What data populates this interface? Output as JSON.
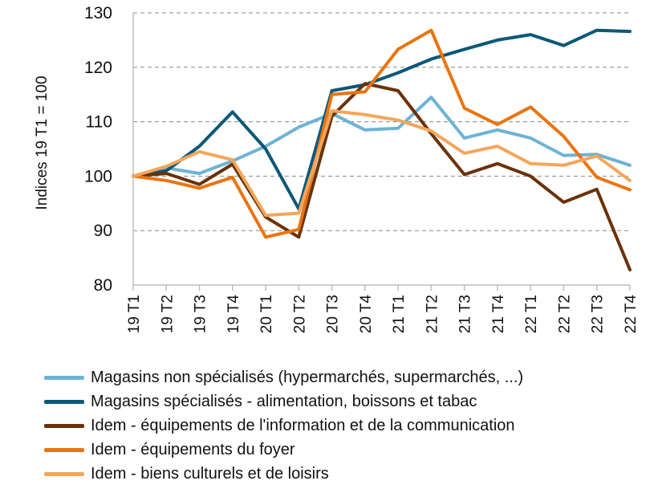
{
  "chart_data": {
    "type": "line",
    "title": "",
    "xlabel": "",
    "ylabel": "Indices 19 T1 = 100",
    "ylim": [
      80,
      130
    ],
    "yticks": [
      80,
      90,
      100,
      110,
      120,
      130
    ],
    "grid": true,
    "legend_position": "bottom",
    "categories": [
      "19 T1",
      "19 T2",
      "19 T3",
      "19 T4",
      "20 T1",
      "20 T2",
      "20 T3",
      "20 T4",
      "21 T1",
      "21 T2",
      "21 T3",
      "21 T4",
      "22 T1",
      "22 T2",
      "22 T3",
      "22 T4"
    ],
    "series": [
      {
        "name": "Magasins non spécialisés (hypermarchés, supermarchés, ...)",
        "color": "#6db3d4",
        "values": [
          100,
          101.5,
          100.5,
          102.8,
          105.5,
          109,
          111.5,
          108.5,
          108.8,
          114.5,
          107,
          108.5,
          107,
          103.8,
          104,
          102
        ]
      },
      {
        "name": "Magasins spécialisés - alimentation, boissons et tabac",
        "color": "#0c5878",
        "values": [
          100,
          101,
          105.5,
          111.8,
          105,
          94,
          115.7,
          116.8,
          119,
          121.5,
          123.3,
          125,
          126,
          124,
          126.8,
          126.6
        ]
      },
      {
        "name": "Idem - équipements de l'information et de la communication",
        "color": "#6b3107",
        "values": [
          100,
          100.5,
          98.5,
          102.2,
          92.5,
          88.8,
          111,
          117,
          115.7,
          107.8,
          100.3,
          102.3,
          100,
          95.2,
          97.6,
          82.8
        ]
      },
      {
        "name": "Idem - équipements du foyer",
        "color": "#e97510",
        "values": [
          100,
          99.2,
          97.8,
          99.8,
          88.8,
          90.2,
          115,
          115.5,
          123.3,
          126.8,
          112.5,
          109.5,
          112.7,
          107.3,
          99.8,
          97.5
        ]
      },
      {
        "name": "Idem - biens culturels et de loisirs",
        "color": "#f4a65a",
        "values": [
          100,
          101.8,
          104.5,
          103,
          92.8,
          93.2,
          112,
          111.3,
          110.3,
          108.3,
          104.2,
          105.5,
          102.3,
          102,
          103.7,
          99.2
        ]
      }
    ]
  }
}
